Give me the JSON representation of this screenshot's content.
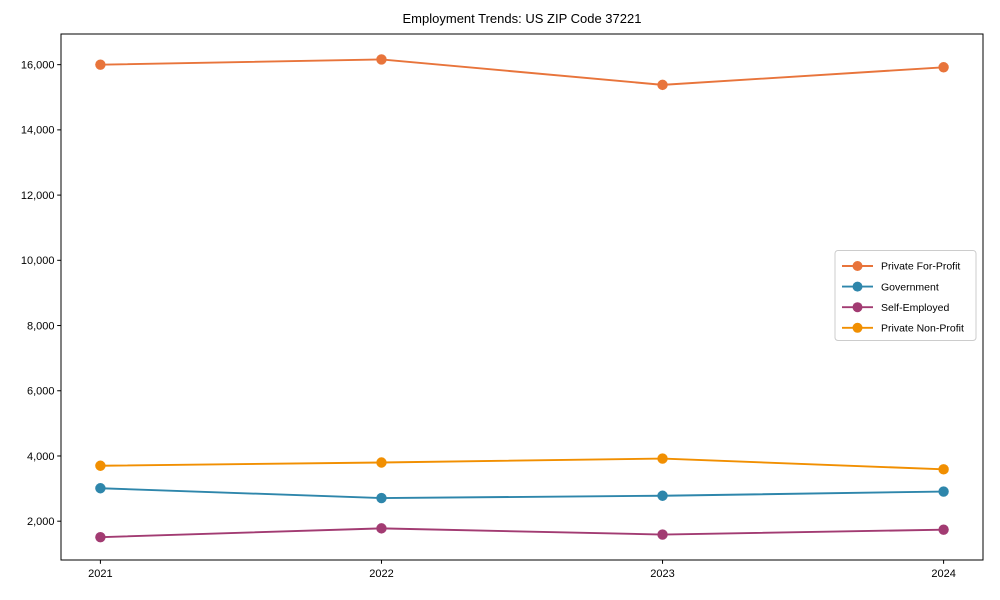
{
  "figure": {
    "title": "Employment Trends: US ZIP Code 37221"
  },
  "chart_data": {
    "type": "line",
    "title": "Employment Trends: US ZIP Code 37221",
    "categories": [
      "2021",
      "2022",
      "2023",
      "2024"
    ],
    "series": [
      {
        "name": "Private For-Profit",
        "color": "#E8743B",
        "values": [
          16000,
          16160,
          15380,
          15920
        ]
      },
      {
        "name": "Government",
        "color": "#2E86AB",
        "values": [
          3010,
          2710,
          2780,
          2910
        ]
      },
      {
        "name": "Self-Employed",
        "color": "#A23B72",
        "values": [
          1510,
          1780,
          1590,
          1740
        ]
      },
      {
        "name": "Private Non-Profit",
        "color": "#F18F01",
        "values": [
          3700,
          3800,
          3920,
          3590
        ]
      }
    ],
    "xlabel": "",
    "ylabel": "",
    "y_ticks": [
      2000,
      4000,
      6000,
      8000,
      10000,
      12000,
      14000,
      16000
    ],
    "ylim": [
      810,
      16940
    ],
    "grid": false,
    "legend_position": "center right",
    "marker": "circle",
    "axis_color": "#000000",
    "legend_border_color": "#cccccc",
    "background": "#ffffff"
  }
}
